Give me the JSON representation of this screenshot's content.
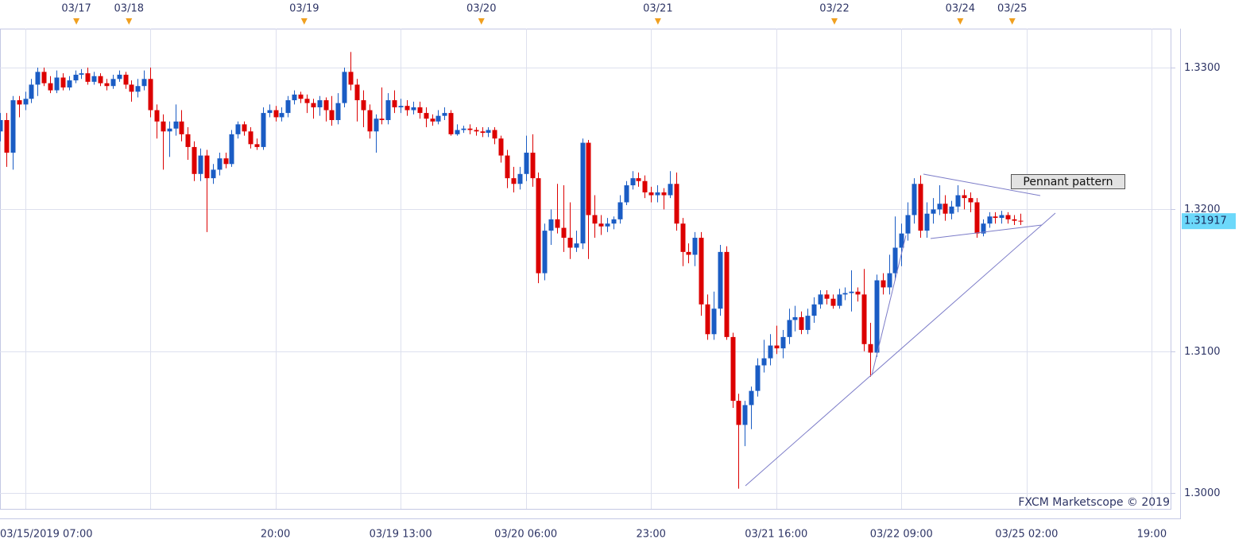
{
  "chart_data": {
    "type": "candlestick",
    "watermark": "FXCM Marketscope © 2019",
    "annotation": "Pennant pattern",
    "last_price": 1.31917,
    "up_color": "#1a5cc4",
    "down_color": "#dc0000",
    "ylim": [
      1.29888,
      1.33275
    ],
    "yticks": [
      {
        "value": 1.3,
        "label": "1.3000"
      },
      {
        "value": 1.31,
        "label": "1.3100"
      },
      {
        "value": 1.32,
        "label": "1.3200"
      },
      {
        "value": 1.33,
        "label": "1.3300"
      }
    ],
    "xlim": [
      0,
      187
    ],
    "xgrid": [
      4,
      24,
      44,
      64,
      84,
      104,
      124,
      144,
      164,
      184
    ],
    "xticks": [
      {
        "value": 4,
        "label": "03/15/2019 07:00"
      },
      {
        "value": 44,
        "label": "20:00"
      },
      {
        "value": 64,
        "label": "03/19 13:00"
      },
      {
        "value": 84,
        "label": "03/20 06:00"
      },
      {
        "value": 104,
        "label": "23:00"
      },
      {
        "value": 124,
        "label": "03/21 16:00"
      },
      {
        "value": 144,
        "label": "03/22 09:00"
      },
      {
        "value": 164,
        "label": "03/25 02:00"
      },
      {
        "value": 184,
        "label": "19:00"
      }
    ],
    "day_markers": [
      {
        "value": 12.2,
        "label": "03/17"
      },
      {
        "value": 20.6,
        "label": "03/18"
      },
      {
        "value": 48.6,
        "label": "03/19"
      },
      {
        "value": 76.9,
        "label": "03/20"
      },
      {
        "value": 105.1,
        "label": "03/21"
      },
      {
        "value": 133.3,
        "label": "03/22"
      },
      {
        "value": 153.4,
        "label": "03/24"
      },
      {
        "value": 161.7,
        "label": "03/25"
      }
    ],
    "candles": [
      [
        1.3255,
        1.3268,
        1.3248,
        1.3263
      ],
      [
        1.3263,
        1.3268,
        1.323,
        1.324
      ],
      [
        1.324,
        1.328,
        1.3228,
        1.3277
      ],
      [
        1.3277,
        1.328,
        1.3265,
        1.3274
      ],
      [
        1.3274,
        1.3283,
        1.327,
        1.3278
      ],
      [
        1.3278,
        1.3292,
        1.3275,
        1.3288
      ],
      [
        1.3288,
        1.33,
        1.328,
        1.3297
      ],
      [
        1.3297,
        1.33,
        1.3287,
        1.3289
      ],
      [
        1.3289,
        1.3294,
        1.3282,
        1.3284
      ],
      [
        1.3284,
        1.3298,
        1.3282,
        1.3293
      ],
      [
        1.3293,
        1.3296,
        1.3284,
        1.3286
      ],
      [
        1.3286,
        1.3294,
        1.3284,
        1.3291
      ],
      [
        1.3291,
        1.3298,
        1.3289,
        1.3295
      ],
      [
        1.3295,
        1.3299,
        1.3292,
        1.3296
      ],
      [
        1.3296,
        1.33,
        1.3288,
        1.329
      ],
      [
        1.329,
        1.3297,
        1.3288,
        1.3294
      ],
      [
        1.3294,
        1.3296,
        1.3287,
        1.3289
      ],
      [
        1.3289,
        1.3292,
        1.3284,
        1.3287
      ],
      [
        1.3287,
        1.3295,
        1.3285,
        1.3292
      ],
      [
        1.3292,
        1.3298,
        1.329,
        1.3295
      ],
      [
        1.3295,
        1.3297,
        1.3285,
        1.3288
      ],
      [
        1.3288,
        1.3291,
        1.3276,
        1.3283
      ],
      [
        1.3283,
        1.3292,
        1.3279,
        1.3287
      ],
      [
        1.3287,
        1.3298,
        1.3284,
        1.3292
      ],
      [
        1.3292,
        1.33,
        1.3265,
        1.327
      ],
      [
        1.327,
        1.3274,
        1.325,
        1.3262
      ],
      [
        1.3262,
        1.3267,
        1.3228,
        1.3255
      ],
      [
        1.3255,
        1.3262,
        1.3237,
        1.3257
      ],
      [
        1.3257,
        1.3274,
        1.3252,
        1.3262
      ],
      [
        1.3262,
        1.327,
        1.3248,
        1.3253
      ],
      [
        1.3253,
        1.3258,
        1.3235,
        1.3244
      ],
      [
        1.3244,
        1.3248,
        1.322,
        1.3225
      ],
      [
        1.3225,
        1.3243,
        1.322,
        1.3238
      ],
      [
        1.3238,
        1.3242,
        1.3184,
        1.3222
      ],
      [
        1.3222,
        1.3232,
        1.3218,
        1.3228
      ],
      [
        1.3228,
        1.324,
        1.3224,
        1.3236
      ],
      [
        1.3236,
        1.324,
        1.3229,
        1.3232
      ],
      [
        1.3232,
        1.3256,
        1.323,
        1.3253
      ],
      [
        1.3253,
        1.3262,
        1.325,
        1.326
      ],
      [
        1.326,
        1.3262,
        1.3252,
        1.3255
      ],
      [
        1.3255,
        1.3258,
        1.3243,
        1.3246
      ],
      [
        1.3246,
        1.325,
        1.3242,
        1.3244
      ],
      [
        1.3244,
        1.3272,
        1.3242,
        1.3268
      ],
      [
        1.3268,
        1.3274,
        1.3265,
        1.327
      ],
      [
        1.327,
        1.3273,
        1.3262,
        1.3265
      ],
      [
        1.3265,
        1.3272,
        1.3262,
        1.3268
      ],
      [
        1.3268,
        1.328,
        1.3265,
        1.3277
      ],
      [
        1.3277,
        1.3284,
        1.3274,
        1.3281
      ],
      [
        1.3281,
        1.3283,
        1.3275,
        1.3278
      ],
      [
        1.3278,
        1.3281,
        1.3268,
        1.3275
      ],
      [
        1.3275,
        1.3278,
        1.3264,
        1.3272
      ],
      [
        1.3272,
        1.328,
        1.3266,
        1.3277
      ],
      [
        1.3277,
        1.3279,
        1.3262,
        1.327
      ],
      [
        1.327,
        1.328,
        1.3259,
        1.3263
      ],
      [
        1.3263,
        1.3282,
        1.326,
        1.3275
      ],
      [
        1.3275,
        1.33,
        1.3272,
        1.3297
      ],
      [
        1.3297,
        1.3311,
        1.3284,
        1.3288
      ],
      [
        1.3288,
        1.3292,
        1.3262,
        1.3277
      ],
      [
        1.3277,
        1.3284,
        1.3258,
        1.327
      ],
      [
        1.327,
        1.3274,
        1.325,
        1.3255
      ],
      [
        1.3255,
        1.3267,
        1.324,
        1.3264
      ],
      [
        1.3264,
        1.3286,
        1.326,
        1.3263
      ],
      [
        1.3263,
        1.3282,
        1.326,
        1.3277
      ],
      [
        1.3277,
        1.3284,
        1.3268,
        1.3272
      ],
      [
        1.3272,
        1.3278,
        1.3268,
        1.3273
      ],
      [
        1.3273,
        1.3277,
        1.3266,
        1.327
      ],
      [
        1.327,
        1.3276,
        1.3267,
        1.3272
      ],
      [
        1.3272,
        1.3276,
        1.3264,
        1.3268
      ],
      [
        1.3268,
        1.3272,
        1.3258,
        1.3264
      ],
      [
        1.3264,
        1.3267,
        1.3259,
        1.3262
      ],
      [
        1.3262,
        1.327,
        1.326,
        1.3266
      ],
      [
        1.3266,
        1.3272,
        1.3263,
        1.3268
      ],
      [
        1.3268,
        1.327,
        1.3252,
        1.3253
      ],
      [
        1.3253,
        1.326,
        1.3252,
        1.3256
      ],
      [
        1.3256,
        1.3259,
        1.3254,
        1.3257
      ],
      [
        1.3257,
        1.326,
        1.3253,
        1.3256
      ],
      [
        1.3256,
        1.3258,
        1.3252,
        1.3255
      ],
      [
        1.3255,
        1.3258,
        1.3251,
        1.3254
      ],
      [
        1.3254,
        1.3258,
        1.3251,
        1.3256
      ],
      [
        1.3256,
        1.3258,
        1.3246,
        1.325
      ],
      [
        1.325,
        1.3252,
        1.3233,
        1.3238
      ],
      [
        1.3238,
        1.3242,
        1.3215,
        1.3222
      ],
      [
        1.3222,
        1.323,
        1.3212,
        1.3218
      ],
      [
        1.3218,
        1.323,
        1.3214,
        1.3225
      ],
      [
        1.3225,
        1.3252,
        1.322,
        1.324
      ],
      [
        1.324,
        1.3253,
        1.3216,
        1.3222
      ],
      [
        1.3222,
        1.3226,
        1.3148,
        1.3155
      ],
      [
        1.3155,
        1.319,
        1.315,
        1.3185
      ],
      [
        1.3185,
        1.32,
        1.3175,
        1.3193
      ],
      [
        1.3193,
        1.3218,
        1.3183,
        1.3187
      ],
      [
        1.3187,
        1.3217,
        1.317,
        1.318
      ],
      [
        1.318,
        1.3205,
        1.3165,
        1.3173
      ],
      [
        1.3173,
        1.3185,
        1.317,
        1.3176
      ],
      [
        1.3176,
        1.325,
        1.3172,
        1.3247
      ],
      [
        1.3247,
        1.3249,
        1.3165,
        1.3196
      ],
      [
        1.3196,
        1.321,
        1.318,
        1.319
      ],
      [
        1.319,
        1.3196,
        1.3182,
        1.3188
      ],
      [
        1.3188,
        1.3194,
        1.3184,
        1.319
      ],
      [
        1.319,
        1.3195,
        1.3186,
        1.3193
      ],
      [
        1.3193,
        1.321,
        1.319,
        1.3205
      ],
      [
        1.3205,
        1.322,
        1.3203,
        1.3217
      ],
      [
        1.3217,
        1.3227,
        1.3214,
        1.3222
      ],
      [
        1.3222,
        1.3226,
        1.3216,
        1.322
      ],
      [
        1.322,
        1.3224,
        1.3208,
        1.3212
      ],
      [
        1.3212,
        1.3216,
        1.3205,
        1.321
      ],
      [
        1.321,
        1.3217,
        1.3205,
        1.3212
      ],
      [
        1.3212,
        1.3215,
        1.32,
        1.321
      ],
      [
        1.321,
        1.3227,
        1.3208,
        1.3218
      ],
      [
        1.3218,
        1.3226,
        1.3185,
        1.319
      ],
      [
        1.319,
        1.3194,
        1.316,
        1.317
      ],
      [
        1.317,
        1.3176,
        1.3162,
        1.3168
      ],
      [
        1.3168,
        1.3184,
        1.316,
        1.318
      ],
      [
        1.318,
        1.3184,
        1.3125,
        1.3133
      ],
      [
        1.3133,
        1.314,
        1.3108,
        1.3112
      ],
      [
        1.3112,
        1.3142,
        1.3108,
        1.313
      ],
      [
        1.313,
        1.3175,
        1.3125,
        1.317
      ],
      [
        1.317,
        1.3174,
        1.3108,
        1.311
      ],
      [
        1.311,
        1.3113,
        1.306,
        1.3065
      ],
      [
        1.3065,
        1.307,
        1.3003,
        1.3048
      ],
      [
        1.3048,
        1.3065,
        1.3033,
        1.3062
      ],
      [
        1.3062,
        1.3075,
        1.3045,
        1.3072
      ],
      [
        1.3072,
        1.3095,
        1.3068,
        1.309
      ],
      [
        1.309,
        1.3108,
        1.3085,
        1.3095
      ],
      [
        1.3095,
        1.3112,
        1.309,
        1.3104
      ],
      [
        1.3104,
        1.3118,
        1.3098,
        1.3102
      ],
      [
        1.3102,
        1.3115,
        1.3095,
        1.311
      ],
      [
        1.311,
        1.313,
        1.3105,
        1.3122
      ],
      [
        1.3122,
        1.3132,
        1.3114,
        1.3124
      ],
      [
        1.3124,
        1.3128,
        1.3112,
        1.3115
      ],
      [
        1.3115,
        1.313,
        1.3112,
        1.3125
      ],
      [
        1.3125,
        1.3138,
        1.312,
        1.3133
      ],
      [
        1.3133,
        1.3143,
        1.313,
        1.314
      ],
      [
        1.314,
        1.3143,
        1.3133,
        1.3137
      ],
      [
        1.3137,
        1.314,
        1.313,
        1.3132
      ],
      [
        1.3132,
        1.3144,
        1.313,
        1.314
      ],
      [
        1.314,
        1.3145,
        1.3136,
        1.3141
      ],
      [
        1.3141,
        1.3157,
        1.3128,
        1.3142
      ],
      [
        1.3142,
        1.3145,
        1.3135,
        1.314
      ],
      [
        1.314,
        1.3158,
        1.31,
        1.3105
      ],
      [
        1.3105,
        1.312,
        1.3082,
        1.3099
      ],
      [
        1.3099,
        1.3154,
        1.3096,
        1.315
      ],
      [
        1.315,
        1.3155,
        1.314,
        1.3145
      ],
      [
        1.3145,
        1.3168,
        1.314,
        1.3155
      ],
      [
        1.3155,
        1.3195,
        1.315,
        1.3173
      ],
      [
        1.3173,
        1.319,
        1.316,
        1.3183
      ],
      [
        1.3183,
        1.3205,
        1.3178,
        1.3196
      ],
      [
        1.3196,
        1.3222,
        1.319,
        1.3218
      ],
      [
        1.3218,
        1.3224,
        1.318,
        1.3185
      ],
      [
        1.3185,
        1.3205,
        1.318,
        1.3197
      ],
      [
        1.3197,
        1.3208,
        1.319,
        1.32
      ],
      [
        1.32,
        1.3217,
        1.3196,
        1.3204
      ],
      [
        1.3204,
        1.321,
        1.3192,
        1.3197
      ],
      [
        1.3197,
        1.3206,
        1.3193,
        1.3202
      ],
      [
        1.3202,
        1.3217,
        1.3198,
        1.321
      ],
      [
        1.321,
        1.3214,
        1.32,
        1.3208
      ],
      [
        1.3208,
        1.3212,
        1.3198,
        1.3205
      ],
      [
        1.3205,
        1.3208,
        1.318,
        1.3183
      ],
      [
        1.3183,
        1.3193,
        1.3181,
        1.319
      ],
      [
        1.319,
        1.3198,
        1.3187,
        1.3195
      ],
      [
        1.3195,
        1.3198,
        1.319,
        1.3194
      ],
      [
        1.3194,
        1.3199,
        1.319,
        1.3196
      ],
      [
        1.3196,
        1.3198,
        1.319,
        1.3193
      ],
      [
        1.3193,
        1.3196,
        1.3189,
        1.3192
      ],
      [
        1.3192,
        1.3197,
        1.3189,
        1.31917
      ]
    ]
  }
}
